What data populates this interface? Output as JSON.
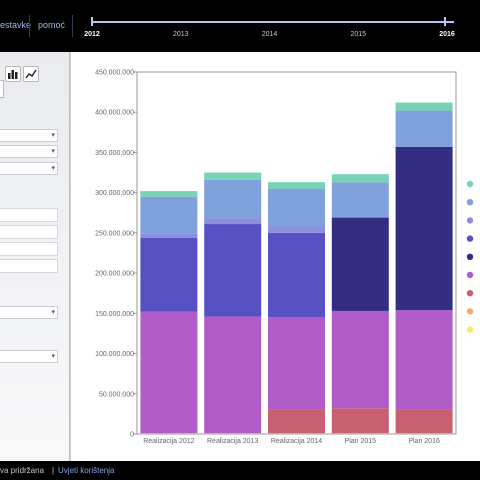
{
  "header": {
    "nav_left": "estavke",
    "nav_help": "pomoć"
  },
  "timeline": {
    "years": [
      "2012",
      "2013",
      "2014",
      "2015",
      "2016"
    ],
    "bold_years": [
      "2012",
      "2016"
    ]
  },
  "toolbar": {
    "icons": [
      "bar-chart-icon",
      "line-chart-icon"
    ]
  },
  "footer": {
    "rights_text": "va pridržana",
    "separator": "|",
    "terms_link": "Uvjeti korištenja"
  },
  "chart_data": {
    "type": "bar",
    "stacked": true,
    "categories": [
      "Realizacija 2012",
      "Realizacija 2013",
      "Realizacija 2014",
      "Plan 2015",
      "Plan 2016"
    ],
    "ylim": [
      0,
      450000000
    ],
    "yticks": [
      0,
      50000000,
      100000000,
      150000000,
      200000000,
      250000000,
      300000000,
      350000000,
      400000000,
      450000000
    ],
    "ytick_labels": [
      "0",
      "50.000.000",
      "100.000.000",
      "150.000.000",
      "200.000.000",
      "250.000.000",
      "300.000.000",
      "350.000.000",
      "400.000.000",
      "450.000.000"
    ],
    "grid": false,
    "legend_position": "right",
    "series": [
      {
        "color": "#f6ea6a",
        "values": [
          0,
          0,
          0,
          0,
          0
        ]
      },
      {
        "color": "#f5a96b",
        "values": [
          1000000,
          1000000,
          1000000,
          1000000,
          1000000
        ]
      },
      {
        "color": "#c86070",
        "values": [
          0,
          0,
          29000000,
          31000000,
          29000000
        ]
      },
      {
        "color": "#b05cc8",
        "values": [
          151000000,
          145000000,
          115000000,
          121000000,
          124000000
        ]
      },
      {
        "color": "#332d84",
        "values": [
          0,
          0,
          0,
          116000000,
          203000000
        ]
      },
      {
        "color": "#5652c4",
        "values": [
          92000000,
          115000000,
          105000000,
          0,
          0
        ]
      },
      {
        "color": "#8d8fdc",
        "values": [
          5000000,
          7000000,
          8000000,
          0,
          0
        ]
      },
      {
        "color": "#7fa2dc",
        "values": [
          46000000,
          48000000,
          47000000,
          44000000,
          45000000
        ]
      },
      {
        "color": "#76d3b8",
        "values": [
          7000000,
          9000000,
          8000000,
          10000000,
          10000000
        ]
      }
    ]
  }
}
